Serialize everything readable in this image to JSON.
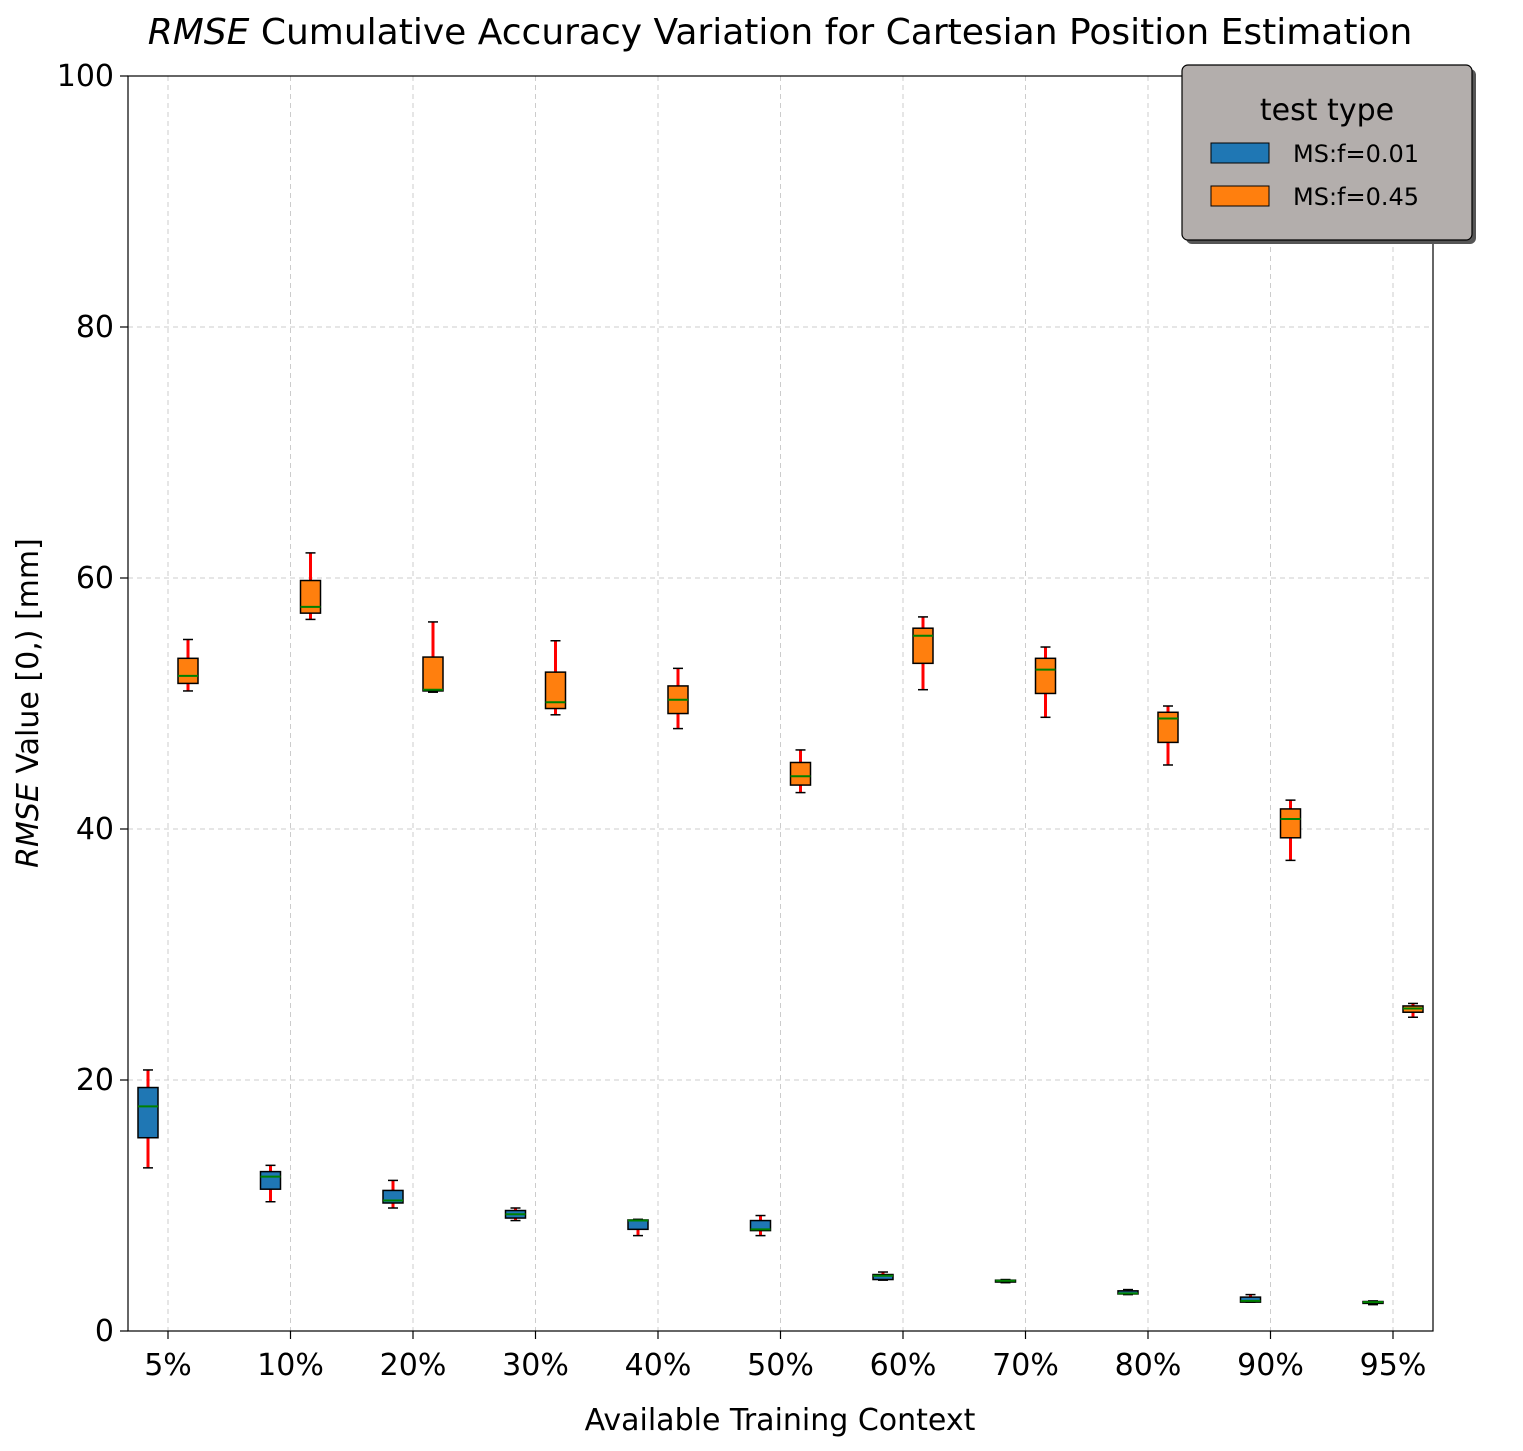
{
  "chart_data": {
    "type": "box",
    "title_italic": "RMSE",
    "title_rest": " Cumulative Accuracy Variation for Cartesian Position Estimation",
    "xlabel": "Available Training Context",
    "ylabel_italic": "RMSE",
    "ylabel_rest": " Value [0,) [mm]",
    "ylim": [
      0,
      100
    ],
    "yticks": [
      0,
      20,
      40,
      60,
      80,
      100
    ],
    "grid": true,
    "categories": [
      "5%",
      "10%",
      "20%",
      "30%",
      "40%",
      "50%",
      "60%",
      "70%",
      "80%",
      "90%",
      "95%"
    ],
    "legend": {
      "title": "test type",
      "placement": "top-right",
      "background": "#b3aeac"
    },
    "colors": {
      "whisker": "#ff0000",
      "median": "#008000",
      "edge": "#000000"
    },
    "series": [
      {
        "name": "MS:f=0.01",
        "color": "#1f77b4",
        "boxes": [
          {
            "whislo": 13.0,
            "q1": 15.4,
            "med": 17.9,
            "q3": 19.4,
            "whishi": 20.8
          },
          {
            "whislo": 10.3,
            "q1": 11.3,
            "med": 12.3,
            "q3": 12.7,
            "whishi": 13.2
          },
          {
            "whislo": 9.8,
            "q1": 10.2,
            "med": 10.4,
            "q3": 11.2,
            "whishi": 12.0
          },
          {
            "whislo": 8.8,
            "q1": 9.0,
            "med": 9.3,
            "q3": 9.6,
            "whishi": 9.8
          },
          {
            "whislo": 7.6,
            "q1": 8.1,
            "med": 8.8,
            "q3": 8.85,
            "whishi": 8.9
          },
          {
            "whislo": 7.6,
            "q1": 8.0,
            "med": 8.1,
            "q3": 8.8,
            "whishi": 9.2
          },
          {
            "whislo": 4.05,
            "q1": 4.1,
            "med": 4.4,
            "q3": 4.5,
            "whishi": 4.7
          },
          {
            "whislo": 3.85,
            "q1": 3.9,
            "med": 4.0,
            "q3": 4.05,
            "whishi": 4.1
          },
          {
            "whislo": 2.9,
            "q1": 2.95,
            "med": 3.0,
            "q3": 3.2,
            "whishi": 3.3
          },
          {
            "whislo": 2.3,
            "q1": 2.3,
            "med": 2.4,
            "q3": 2.7,
            "whishi": 2.9
          },
          {
            "whislo": 2.1,
            "q1": 2.2,
            "med": 2.3,
            "q3": 2.35,
            "whishi": 2.4
          }
        ]
      },
      {
        "name": "MS:f=0.45",
        "color": "#ff7f0e",
        "boxes": [
          {
            "whislo": 51.0,
            "q1": 51.6,
            "med": 52.2,
            "q3": 53.6,
            "whishi": 55.1
          },
          {
            "whislo": 56.7,
            "q1": 57.2,
            "med": 57.7,
            "q3": 59.8,
            "whishi": 62.0
          },
          {
            "whislo": 50.9,
            "q1": 51.0,
            "med": 51.1,
            "q3": 53.7,
            "whishi": 56.5
          },
          {
            "whislo": 49.1,
            "q1": 49.6,
            "med": 50.1,
            "q3": 52.5,
            "whishi": 55.0
          },
          {
            "whislo": 48.0,
            "q1": 49.2,
            "med": 50.3,
            "q3": 51.4,
            "whishi": 52.8
          },
          {
            "whislo": 42.9,
            "q1": 43.5,
            "med": 44.2,
            "q3": 45.3,
            "whishi": 46.3
          },
          {
            "whislo": 51.1,
            "q1": 53.2,
            "med": 55.4,
            "q3": 56.0,
            "whishi": 56.9
          },
          {
            "whislo": 48.9,
            "q1": 50.8,
            "med": 52.7,
            "q3": 53.6,
            "whishi": 54.5
          },
          {
            "whislo": 45.1,
            "q1": 46.9,
            "med": 48.8,
            "q3": 49.3,
            "whishi": 49.8
          },
          {
            "whislo": 37.5,
            "q1": 39.3,
            "med": 40.8,
            "q3": 41.6,
            "whishi": 42.3
          },
          {
            "whislo": 25.0,
            "q1": 25.4,
            "med": 25.7,
            "q3": 25.9,
            "whishi": 26.1
          }
        ]
      }
    ]
  }
}
